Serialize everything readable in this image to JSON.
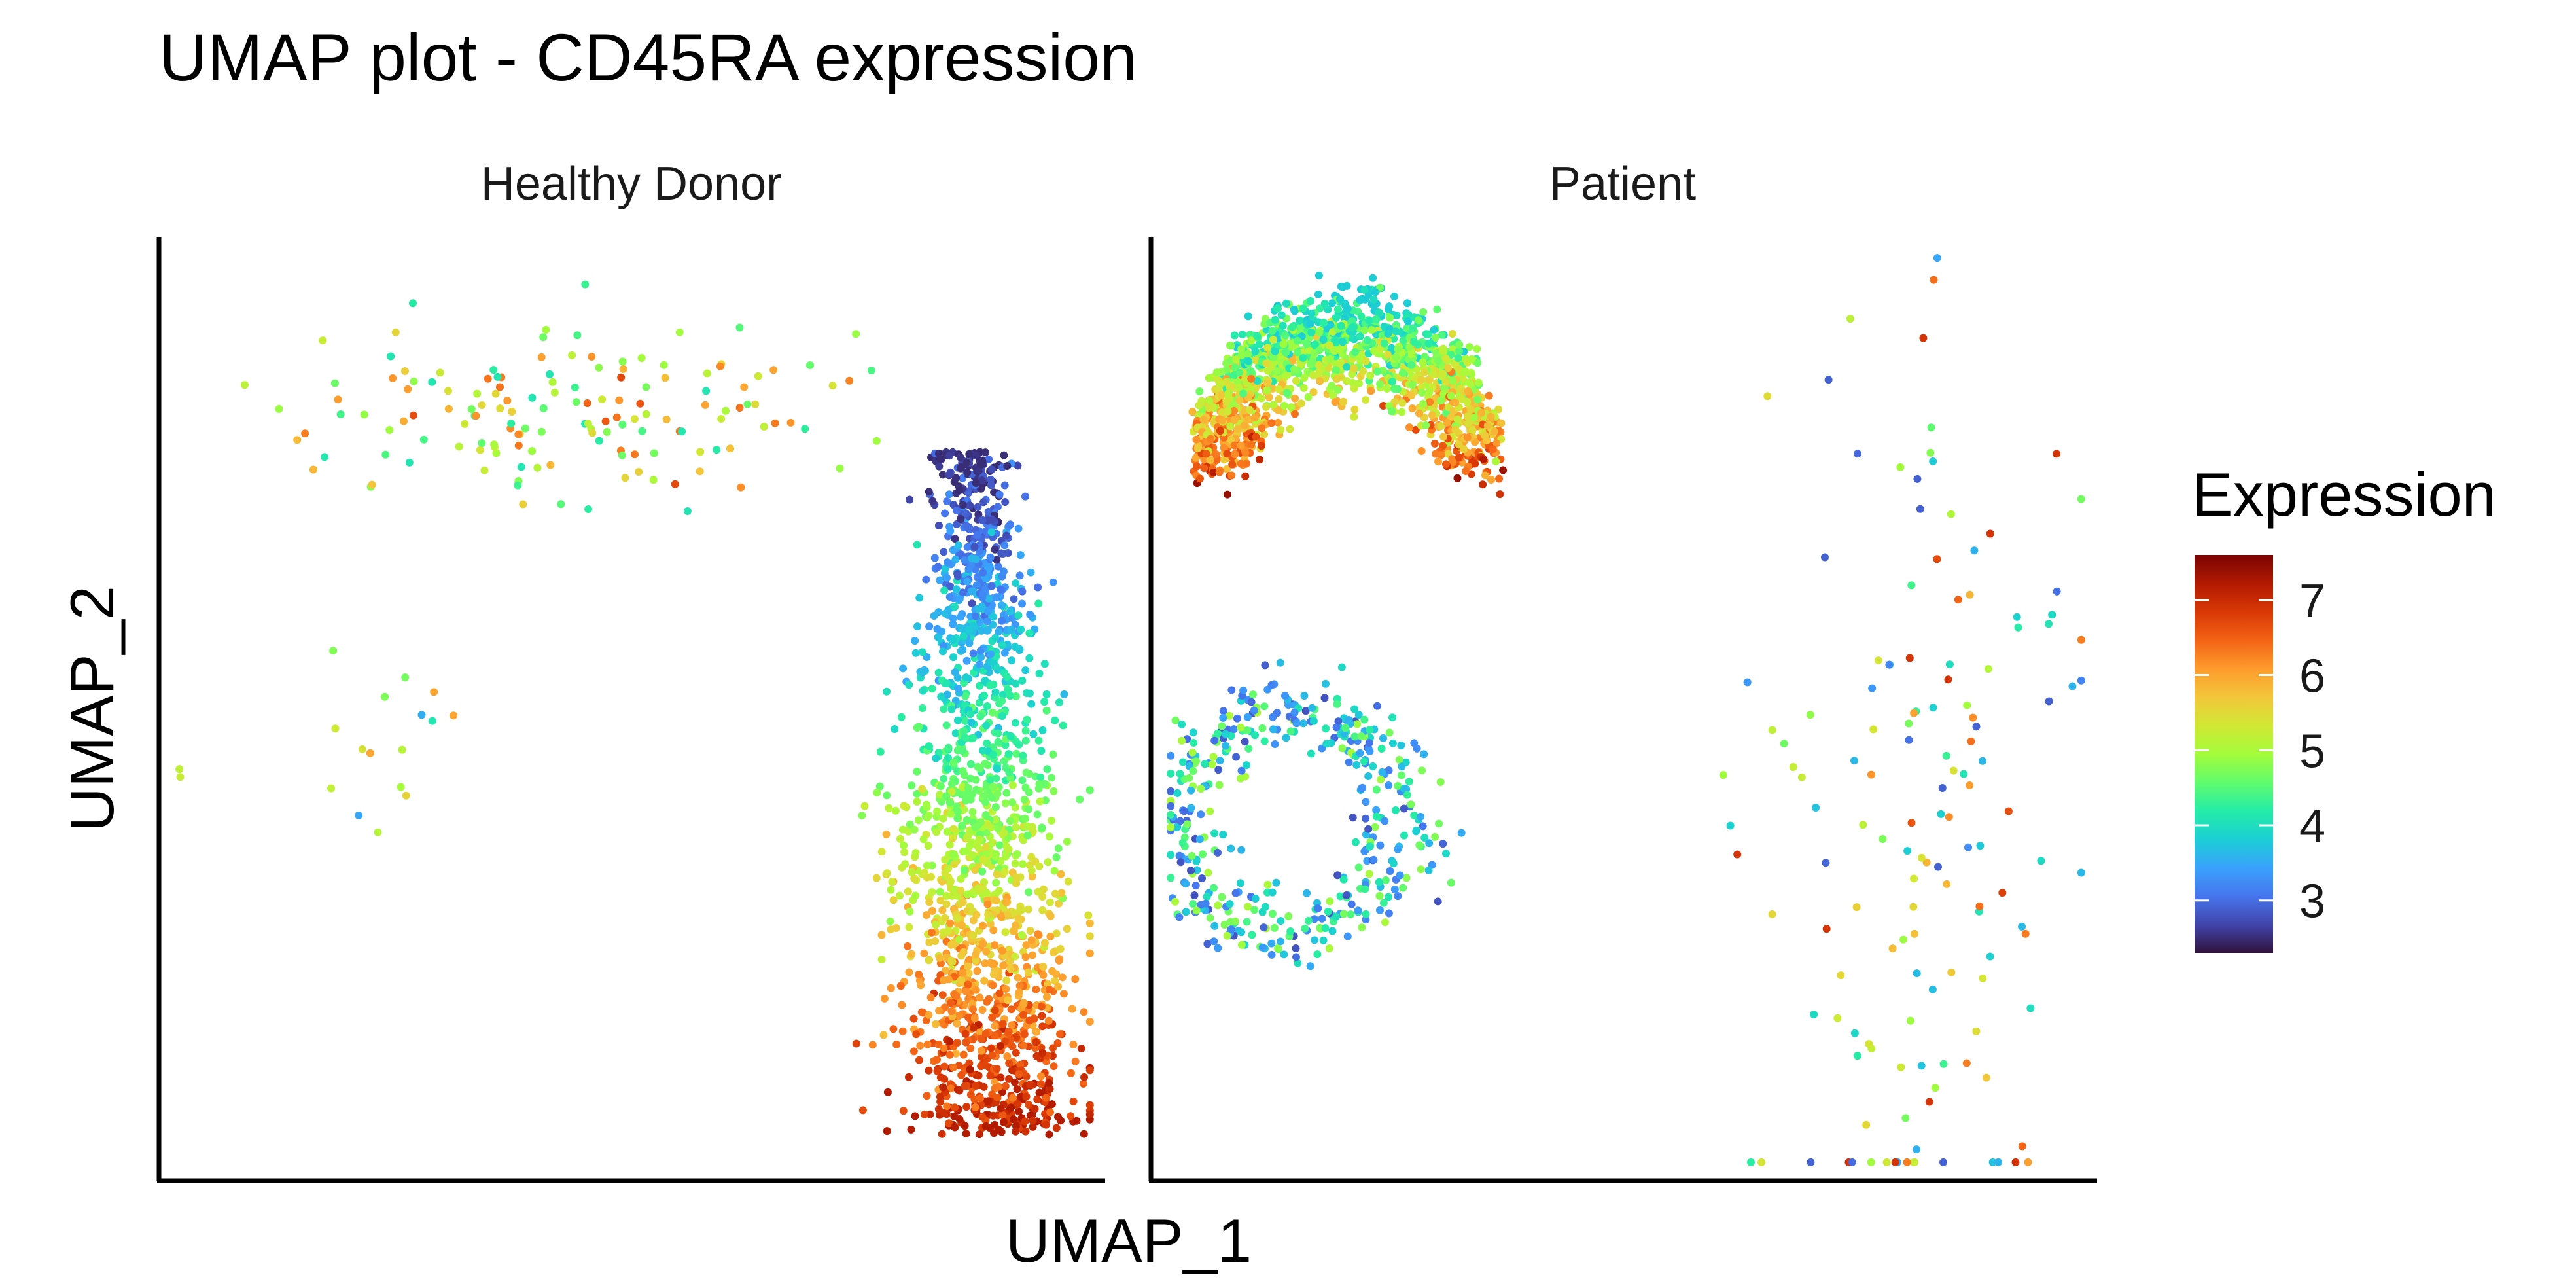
{
  "chart_data": {
    "type": "scatter",
    "title": "UMAP plot - CD45RA expression",
    "xlabel": "UMAP_1",
    "ylabel": "UMAP_2",
    "facets": [
      "Healthy Donor",
      "Patient"
    ],
    "legend": {
      "title": "Expression",
      "position": "right",
      "range": [
        2.3,
        7.6
      ],
      "ticks": [
        3,
        4,
        5,
        6,
        7
      ],
      "colorscale": [
        "#30123b",
        "#4145ab",
        "#4675ed",
        "#39a2fc",
        "#1bcfd4",
        "#24eca6",
        "#61fc6c",
        "#a4fc3b",
        "#d1e834",
        "#f3c63a",
        "#fe9b2d",
        "#f36315",
        "#d93806",
        "#b11901",
        "#7a0403"
      ]
    },
    "axes": {
      "ticks": false,
      "grid": false,
      "axis_lines": [
        "left",
        "bottom"
      ]
    },
    "clusters": [
      {
        "facet": "Healthy Donor",
        "name": "top-left cloud",
        "n": 150,
        "cx": 0.42,
        "cy": 0.18,
        "sx": 0.36,
        "sy": 0.12,
        "expr": [
          4.1,
          6.7
        ]
      },
      {
        "facet": "Healthy Donor",
        "name": "upper-right column",
        "n": 700,
        "cx": 0.86,
        "cy": 0.44,
        "sx": 0.11,
        "sy": 0.3,
        "expr": [
          2.5,
          4.6
        ]
      },
      {
        "facet": "Healthy Donor",
        "name": "lower-right column",
        "n": 1100,
        "cx": 0.89,
        "cy": 0.78,
        "sx": 0.14,
        "sy": 0.36,
        "expr": [
          4.6,
          7.2
        ]
      },
      {
        "facet": "Healthy Donor",
        "name": "scattered left",
        "n": 18,
        "cx": 0.2,
        "cy": 0.55,
        "sx": 0.24,
        "sy": 0.12,
        "expr": [
          3.0,
          6.0
        ]
      },
      {
        "facet": "Patient",
        "name": "top arc",
        "n": 1500,
        "cx": 0.18,
        "cy": 0.2,
        "sx": 0.34,
        "sy": 0.26,
        "expr": [
          3.8,
          7.4
        ]
      },
      {
        "facet": "Patient",
        "name": "middle left loop",
        "n": 450,
        "cx": 0.14,
        "cy": 0.6,
        "sx": 0.28,
        "sy": 0.22,
        "expr": [
          2.8,
          5.0
        ]
      },
      {
        "facet": "Patient",
        "name": "right sparse cluster",
        "n": 140,
        "cx": 0.82,
        "cy": 0.62,
        "sx": 0.22,
        "sy": 0.66,
        "expr": [
          2.9,
          6.9
        ]
      }
    ]
  }
}
